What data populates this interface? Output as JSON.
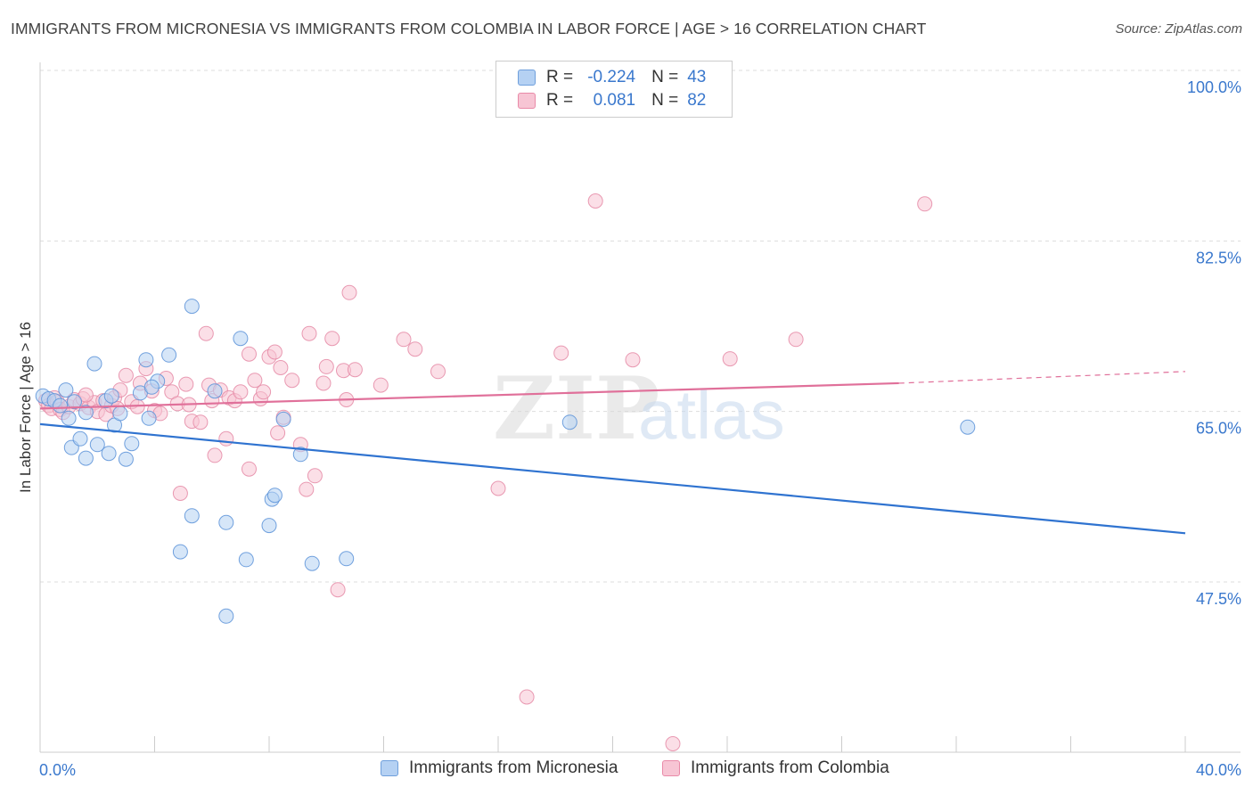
{
  "header": {
    "title": "IMMIGRANTS FROM MICRONESIA VS IMMIGRANTS FROM COLOMBIA IN LABOR FORCE | AGE > 16 CORRELATION CHART",
    "source": "Source: ZipAtlas.com"
  },
  "stats": {
    "r_label": "R =",
    "n_label": "N =",
    "micronesia": {
      "r": "-0.224",
      "n": "43"
    },
    "colombia": {
      "r": "0.081",
      "n": "82"
    }
  },
  "legend": {
    "micronesia": "Immigrants from Micronesia",
    "colombia": "Immigrants from Colombia"
  },
  "colors": {
    "micronesia_fill": "#b5d1f3",
    "micronesia_stroke": "#5a92d8",
    "micronesia_line": "#2f73d0",
    "colombia_fill": "#f7c5d4",
    "colombia_stroke": "#e58aa6",
    "colombia_line": "#e0709a",
    "tick_label": "#3a78cd"
  },
  "chart_data": {
    "type": "scatter",
    "title": "IMMIGRANTS FROM MICRONESIA VS IMMIGRANTS FROM COLOMBIA IN LABOR FORCE | AGE > 16 CORRELATION CHART",
    "xlabel": "",
    "ylabel": "In Labor Force | Age > 16",
    "xlim": [
      0,
      40
    ],
    "ylim": [
      30.5,
      102
    ],
    "x_tick_labels": [
      "0.0%",
      "40.0%"
    ],
    "y_ticks": [
      47.5,
      65.0,
      82.5,
      100.0
    ],
    "y_tick_labels": [
      "47.5%",
      "65.0%",
      "82.5%",
      "100.0%"
    ],
    "grid": true,
    "watermark": "ZIPatlas",
    "series": [
      {
        "name": "Immigrants from Micronesia",
        "points": [
          [
            0.1,
            66.6
          ],
          [
            0.3,
            66.3
          ],
          [
            0.5,
            66.1
          ],
          [
            0.7,
            65.6
          ],
          [
            0.9,
            67.2
          ],
          [
            1.0,
            64.3
          ],
          [
            1.1,
            61.3
          ],
          [
            1.4,
            62.2
          ],
          [
            1.6,
            60.2
          ],
          [
            1.6,
            64.9
          ],
          [
            1.9,
            69.9
          ],
          [
            2.0,
            61.6
          ],
          [
            2.3,
            66.1
          ],
          [
            2.4,
            60.7
          ],
          [
            2.5,
            66.6
          ],
          [
            2.6,
            63.6
          ],
          [
            2.8,
            64.8
          ],
          [
            3.0,
            60.1
          ],
          [
            3.2,
            61.7
          ],
          [
            3.5,
            66.9
          ],
          [
            3.7,
            70.3
          ],
          [
            3.8,
            64.3
          ],
          [
            4.1,
            68.1
          ],
          [
            4.5,
            70.8
          ],
          [
            4.9,
            50.6
          ],
          [
            5.3,
            54.3
          ],
          [
            5.3,
            75.8
          ],
          [
            6.1,
            67.1
          ],
          [
            6.5,
            53.6
          ],
          [
            6.5,
            44.0
          ],
          [
            7.0,
            72.5
          ],
          [
            7.2,
            49.8
          ],
          [
            8.1,
            56.0
          ],
          [
            8.0,
            53.3
          ],
          [
            8.2,
            56.4
          ],
          [
            8.5,
            64.2
          ],
          [
            9.1,
            60.6
          ],
          [
            9.5,
            49.4
          ],
          [
            10.7,
            49.9
          ],
          [
            18.5,
            63.9
          ],
          [
            32.4,
            63.4
          ],
          [
            1.2,
            66.0
          ],
          [
            3.9,
            67.5
          ]
        ],
        "trend": {
          "x": [
            0,
            40
          ],
          "y": [
            63.7,
            52.5
          ]
        }
      },
      {
        "name": "Immigrants from Colombia",
        "points": [
          [
            0.2,
            66.1
          ],
          [
            0.3,
            65.6
          ],
          [
            0.4,
            65.3
          ],
          [
            0.5,
            66.4
          ],
          [
            0.6,
            66.0
          ],
          [
            0.7,
            65.2
          ],
          [
            0.8,
            64.9
          ],
          [
            1.0,
            65.5
          ],
          [
            1.2,
            66.2
          ],
          [
            1.4,
            65.8
          ],
          [
            1.5,
            66.3
          ],
          [
            1.7,
            65.4
          ],
          [
            1.9,
            65.9
          ],
          [
            2.0,
            65.0
          ],
          [
            2.2,
            66.1
          ],
          [
            2.3,
            64.7
          ],
          [
            2.5,
            65.6
          ],
          [
            2.6,
            66.4
          ],
          [
            2.8,
            67.2
          ],
          [
            3.0,
            68.7
          ],
          [
            3.2,
            66.0
          ],
          [
            3.4,
            65.5
          ],
          [
            3.5,
            67.9
          ],
          [
            3.7,
            69.4
          ],
          [
            3.9,
            67.1
          ],
          [
            4.0,
            65.1
          ],
          [
            4.2,
            64.8
          ],
          [
            4.4,
            68.4
          ],
          [
            4.6,
            67.0
          ],
          [
            4.8,
            65.8
          ],
          [
            4.9,
            56.6
          ],
          [
            5.1,
            67.8
          ],
          [
            5.2,
            65.7
          ],
          [
            5.3,
            64.0
          ],
          [
            5.6,
            63.9
          ],
          [
            5.8,
            73.0
          ],
          [
            5.9,
            67.7
          ],
          [
            6.0,
            66.1
          ],
          [
            6.1,
            60.5
          ],
          [
            6.3,
            67.2
          ],
          [
            6.5,
            62.2
          ],
          [
            6.6,
            66.4
          ],
          [
            6.8,
            66.1
          ],
          [
            7.0,
            67.0
          ],
          [
            7.3,
            70.9
          ],
          [
            7.3,
            59.1
          ],
          [
            7.5,
            68.2
          ],
          [
            7.7,
            66.3
          ],
          [
            7.8,
            67.0
          ],
          [
            8.0,
            70.6
          ],
          [
            8.2,
            71.1
          ],
          [
            8.3,
            62.8
          ],
          [
            8.4,
            69.5
          ],
          [
            8.5,
            64.4
          ],
          [
            8.8,
            68.2
          ],
          [
            9.1,
            61.6
          ],
          [
            9.3,
            57.0
          ],
          [
            9.4,
            73.0
          ],
          [
            9.6,
            58.4
          ],
          [
            9.9,
            67.9
          ],
          [
            10.0,
            69.6
          ],
          [
            10.2,
            72.5
          ],
          [
            10.4,
            46.7
          ],
          [
            10.6,
            69.2
          ],
          [
            10.7,
            66.2
          ],
          [
            10.8,
            77.2
          ],
          [
            11.0,
            69.3
          ],
          [
            11.9,
            67.7
          ],
          [
            12.7,
            72.4
          ],
          [
            13.1,
            71.4
          ],
          [
            13.9,
            69.1
          ],
          [
            16.0,
            57.1
          ],
          [
            17.0,
            35.7
          ],
          [
            18.2,
            71.0
          ],
          [
            19.4,
            86.6
          ],
          [
            20.7,
            70.3
          ],
          [
            22.1,
            30.9
          ],
          [
            24.1,
            70.4
          ],
          [
            26.4,
            72.4
          ],
          [
            30.9,
            86.3
          ],
          [
            1.6,
            66.7
          ],
          [
            2.7,
            65.3
          ]
        ],
        "trend": {
          "x": [
            0,
            30.0
          ],
          "y": [
            65.3,
            67.9
          ]
        },
        "trend_extension": {
          "x": [
            30.0,
            40
          ],
          "y": [
            67.9,
            69.1
          ]
        }
      }
    ]
  }
}
